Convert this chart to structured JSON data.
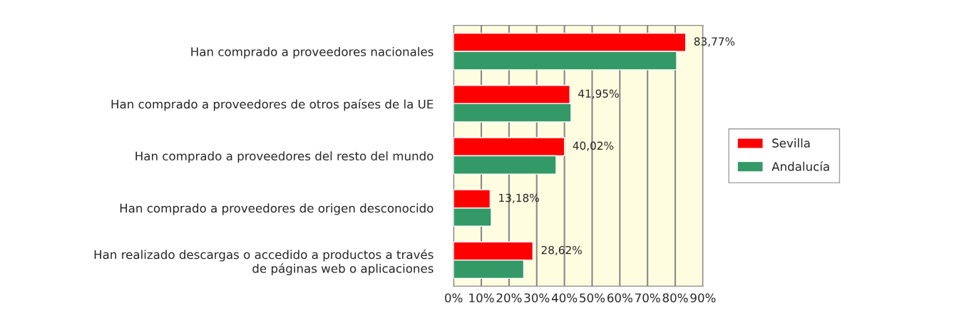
{
  "chart_data": {
    "type": "bar",
    "orientation": "horizontal",
    "categories": [
      "Han comprado a proveedores nacionales",
      "Han comprado a proveedores de otros países de la UE",
      "Han comprado a proveedores del resto del mundo",
      "Han comprado a proveedores de origen desconocido",
      "Han realizado descargas o accedido a productos a través\nde páginas web o aplicaciones"
    ],
    "series": [
      {
        "name": "Sevilla",
        "color": "#ff0000",
        "values": [
          83.77,
          41.95,
          40.02,
          13.18,
          28.62
        ],
        "value_labels": [
          "83,77%",
          "41,95%",
          "40,02%",
          "13,18%",
          "28,62%"
        ]
      },
      {
        "name": "Andalucía",
        "color": "#339966",
        "values": [
          80.5,
          42.4,
          37.0,
          13.6,
          25.3
        ]
      }
    ],
    "xlim": [
      0,
      90
    ],
    "xticks": [
      {
        "value": 0,
        "label": "0%"
      },
      {
        "value": 10,
        "label": "10%"
      },
      {
        "value": 20,
        "label": "20%"
      },
      {
        "value": 30,
        "label": "30%"
      },
      {
        "value": 40,
        "label": "40%"
      },
      {
        "value": 50,
        "label": "50%"
      },
      {
        "value": 60,
        "label": "60%"
      },
      {
        "value": 70,
        "label": "70%"
      },
      {
        "value": 80,
        "label": "80%"
      },
      {
        "value": 90,
        "label": "90%"
      }
    ],
    "grid": "x",
    "legend": "right"
  }
}
